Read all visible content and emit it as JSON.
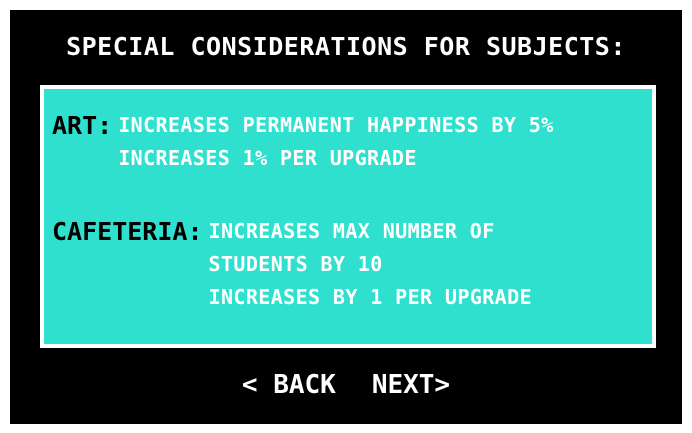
{
  "title": "SPECIAL CONSIDERATIONS FOR SUBJECTS:",
  "subjects": [
    {
      "label": "ART:",
      "lines": [
        "INCREASES PERMANENT HAPPINESS BY 5%",
        "INCREASES 1% PER UPGRADE"
      ]
    },
    {
      "label": "CAFETERIA:",
      "lines": [
        "INCREASES MAX NUMBER OF",
        "STUDENTS BY 10",
        "INCREASES BY 1 PER UPGRADE"
      ]
    }
  ],
  "nav": {
    "back_label": "< BACK",
    "next_label": "NEXT>"
  },
  "colors": {
    "background": "#000000",
    "panel": "#2fe0cf",
    "panel_border": "#ffffff",
    "text": "#ffffff",
    "label": "#000000"
  }
}
